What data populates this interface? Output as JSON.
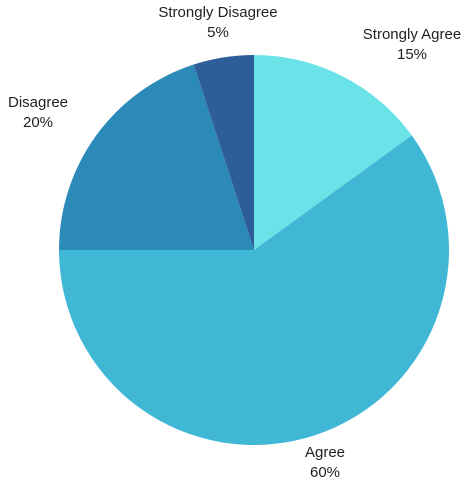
{
  "chart_data": {
    "type": "pie",
    "categories": [
      "Strongly Agree",
      "Agree",
      "Disagree",
      "Strongly Disagree"
    ],
    "values": [
      15,
      60,
      20,
      5
    ],
    "percent_labels": [
      "15%",
      "60%",
      "20%",
      "5%"
    ],
    "colors": [
      "#69E3E8",
      "#41B7D6",
      "#2C8AB8",
      "#2E5E97"
    ],
    "start": "12 o'clock",
    "direction": "clockwise",
    "legend": "none",
    "title": ""
  }
}
